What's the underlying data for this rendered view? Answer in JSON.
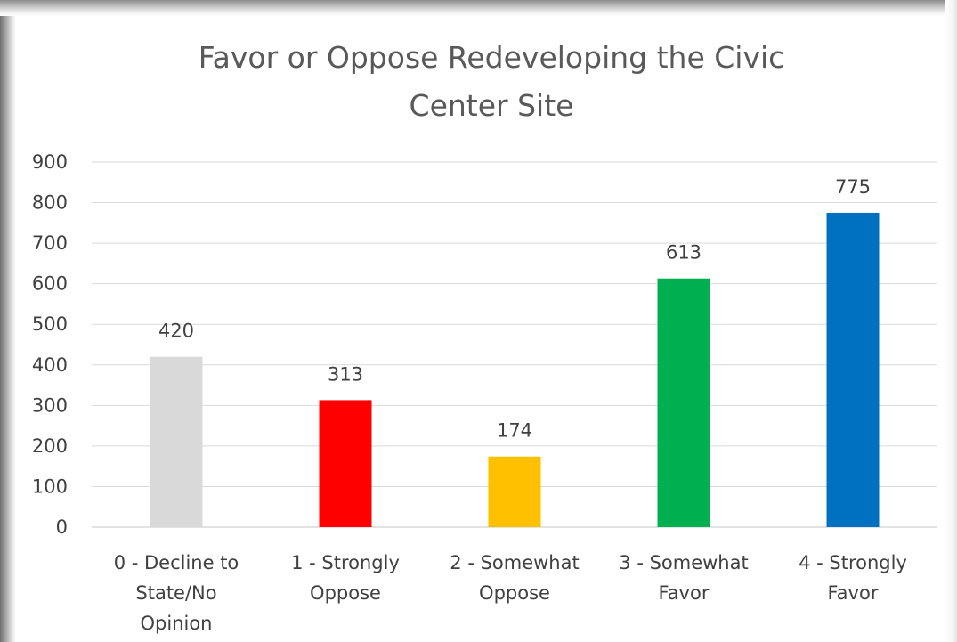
{
  "chart_data": {
    "type": "bar",
    "title": "Favor or Oppose Redeveloping the Civic Center Site",
    "title_lines": [
      "Favor or Oppose Redeveloping the Civic",
      "Center Site"
    ],
    "categories": [
      "0 - Decline to State/No Opinion",
      "1 - Strongly Oppose",
      "2 - Somewhat Oppose",
      "3 - Somewhat Favor",
      "4 - Strongly Favor"
    ],
    "category_lines": [
      [
        "0 - Decline to",
        "State/No",
        "Opinion"
      ],
      [
        "1 - Strongly",
        "Oppose"
      ],
      [
        "2 - Somewhat",
        "Oppose"
      ],
      [
        "3 - Somewhat",
        "Favor"
      ],
      [
        "4 - Strongly",
        "Favor"
      ]
    ],
    "values": [
      420,
      313,
      174,
      613,
      775
    ],
    "colors": [
      "#d9d9d9",
      "#ff0000",
      "#ffc000",
      "#00b050",
      "#0070c0"
    ],
    "xlabel": "",
    "ylabel": "",
    "ylim": [
      0,
      900
    ],
    "yticks": [
      0,
      100,
      200,
      300,
      400,
      500,
      600,
      700,
      800,
      900
    ],
    "grid": true,
    "legend": "none",
    "gridline_color": "#d9d9d9"
  }
}
